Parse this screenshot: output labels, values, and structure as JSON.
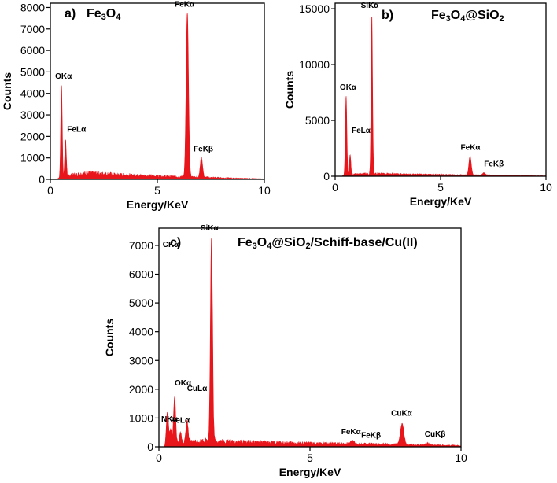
{
  "chart_data": [
    {
      "type": "area",
      "panel_label": "a)",
      "title": "Fe3O4",
      "title_parts": [
        [
          "Fe",
          "n"
        ],
        [
          "3",
          "s"
        ],
        [
          "O",
          "n"
        ],
        [
          "4",
          "s"
        ]
      ],
      "xlabel": "Energy/KeV",
      "ylabel": "Counts",
      "xlim": [
        0,
        10
      ],
      "ylim": [
        0,
        8200
      ],
      "xticks": [
        0,
        5,
        10
      ],
      "yticks": [
        0,
        1000,
        2000,
        3000,
        4000,
        5000,
        6000,
        7000,
        8000
      ],
      "baseline": [
        [
          0.3,
          0
        ],
        [
          0.4,
          60
        ],
        [
          1.0,
          200
        ],
        [
          1.8,
          280
        ],
        [
          2.5,
          250
        ],
        [
          3.5,
          200
        ],
        [
          4.5,
          160
        ],
        [
          5.5,
          130
        ],
        [
          6.2,
          120
        ],
        [
          7.5,
          80
        ],
        [
          8.5,
          50
        ],
        [
          9.5,
          30
        ],
        [
          10,
          20
        ]
      ],
      "peaks": [
        {
          "label": "OKα",
          "x": 0.52,
          "y": 4400
        },
        {
          "label": "FeLα",
          "x": 0.71,
          "y": 1850
        },
        {
          "label": "FeKα",
          "x": 6.4,
          "y": 7750
        },
        {
          "label": "FeKβ",
          "x": 7.06,
          "y": 1000
        }
      ]
    },
    {
      "type": "area",
      "panel_label": "b)",
      "title": "Fe3O4@SiO2",
      "title_parts": [
        [
          "Fe",
          "n"
        ],
        [
          "3",
          "s"
        ],
        [
          "O",
          "n"
        ],
        [
          "4",
          "s"
        ],
        [
          "@SiO",
          "n"
        ],
        [
          "2",
          "s"
        ]
      ],
      "xlabel": "Energy/KeV",
      "ylabel": "Counts",
      "xlim": [
        0,
        10
      ],
      "ylim": [
        0,
        15500
      ],
      "xticks": [
        0,
        5,
        10
      ],
      "yticks": [
        0,
        5000,
        10000,
        15000
      ],
      "baseline": [
        [
          0.3,
          0
        ],
        [
          0.4,
          60
        ],
        [
          1.0,
          180
        ],
        [
          2.0,
          230
        ],
        [
          3.0,
          180
        ],
        [
          4.5,
          140
        ],
        [
          6.0,
          110
        ],
        [
          7.5,
          80
        ],
        [
          9.0,
          50
        ],
        [
          10,
          30
        ]
      ],
      "peaks": [
        {
          "label": "OKα",
          "x": 0.52,
          "y": 7200
        },
        {
          "label": "FeLα",
          "x": 0.71,
          "y": 1900
        },
        {
          "label": "SiKα",
          "x": 1.74,
          "y": 14500
        },
        {
          "label": "FeKα",
          "x": 6.4,
          "y": 1800
        },
        {
          "label": "FeKβ",
          "x": 7.06,
          "y": 300
        }
      ]
    },
    {
      "type": "area",
      "panel_label": "c)",
      "title": "Fe3O4@SiO2/Schiff-base/Cu(II)",
      "title_parts": [
        [
          "Fe",
          "n"
        ],
        [
          "3",
          "s"
        ],
        [
          "O",
          "n"
        ],
        [
          "4",
          "s"
        ],
        [
          "@SiO",
          "n"
        ],
        [
          "2",
          "s"
        ],
        [
          "/Schiff-base/Cu(II)",
          "n"
        ]
      ],
      "xlabel": "Energy/KeV",
      "ylabel": "Counts",
      "xlim": [
        0,
        10
      ],
      "ylim": [
        0,
        7600
      ],
      "xticks": [
        0,
        5,
        10
      ],
      "yticks": [
        0,
        1000,
        2000,
        3000,
        4000,
        5000,
        6000,
        7000
      ],
      "baseline": [
        [
          0.2,
          0
        ],
        [
          0.3,
          60
        ],
        [
          0.8,
          150
        ],
        [
          1.5,
          210
        ],
        [
          2.5,
          180
        ],
        [
          3.5,
          150
        ],
        [
          5.0,
          120
        ],
        [
          6.5,
          100
        ],
        [
          8.0,
          80
        ],
        [
          9.0,
          60
        ],
        [
          10,
          40
        ]
      ],
      "peaks": [
        {
          "label": "CKα",
          "x": 0.28,
          "y": 1200
        },
        {
          "label": "NKα",
          "x": 0.39,
          "y": 600
        },
        {
          "label": "OKα",
          "x": 0.52,
          "y": 1750
        },
        {
          "label": "FeLα",
          "x": 0.71,
          "y": 500
        },
        {
          "label": "CuLα",
          "x": 0.93,
          "y": 900
        },
        {
          "label": "SiKα",
          "x": 1.74,
          "y": 7300
        },
        {
          "label": "FeKα",
          "x": 6.4,
          "y": 220
        },
        {
          "label": "FeKβ",
          "x": 7.06,
          "y": 100
        },
        {
          "label": "CuKα",
          "x": 8.05,
          "y": 800
        },
        {
          "label": "CuKβ",
          "x": 8.9,
          "y": 130
        }
      ]
    }
  ]
}
